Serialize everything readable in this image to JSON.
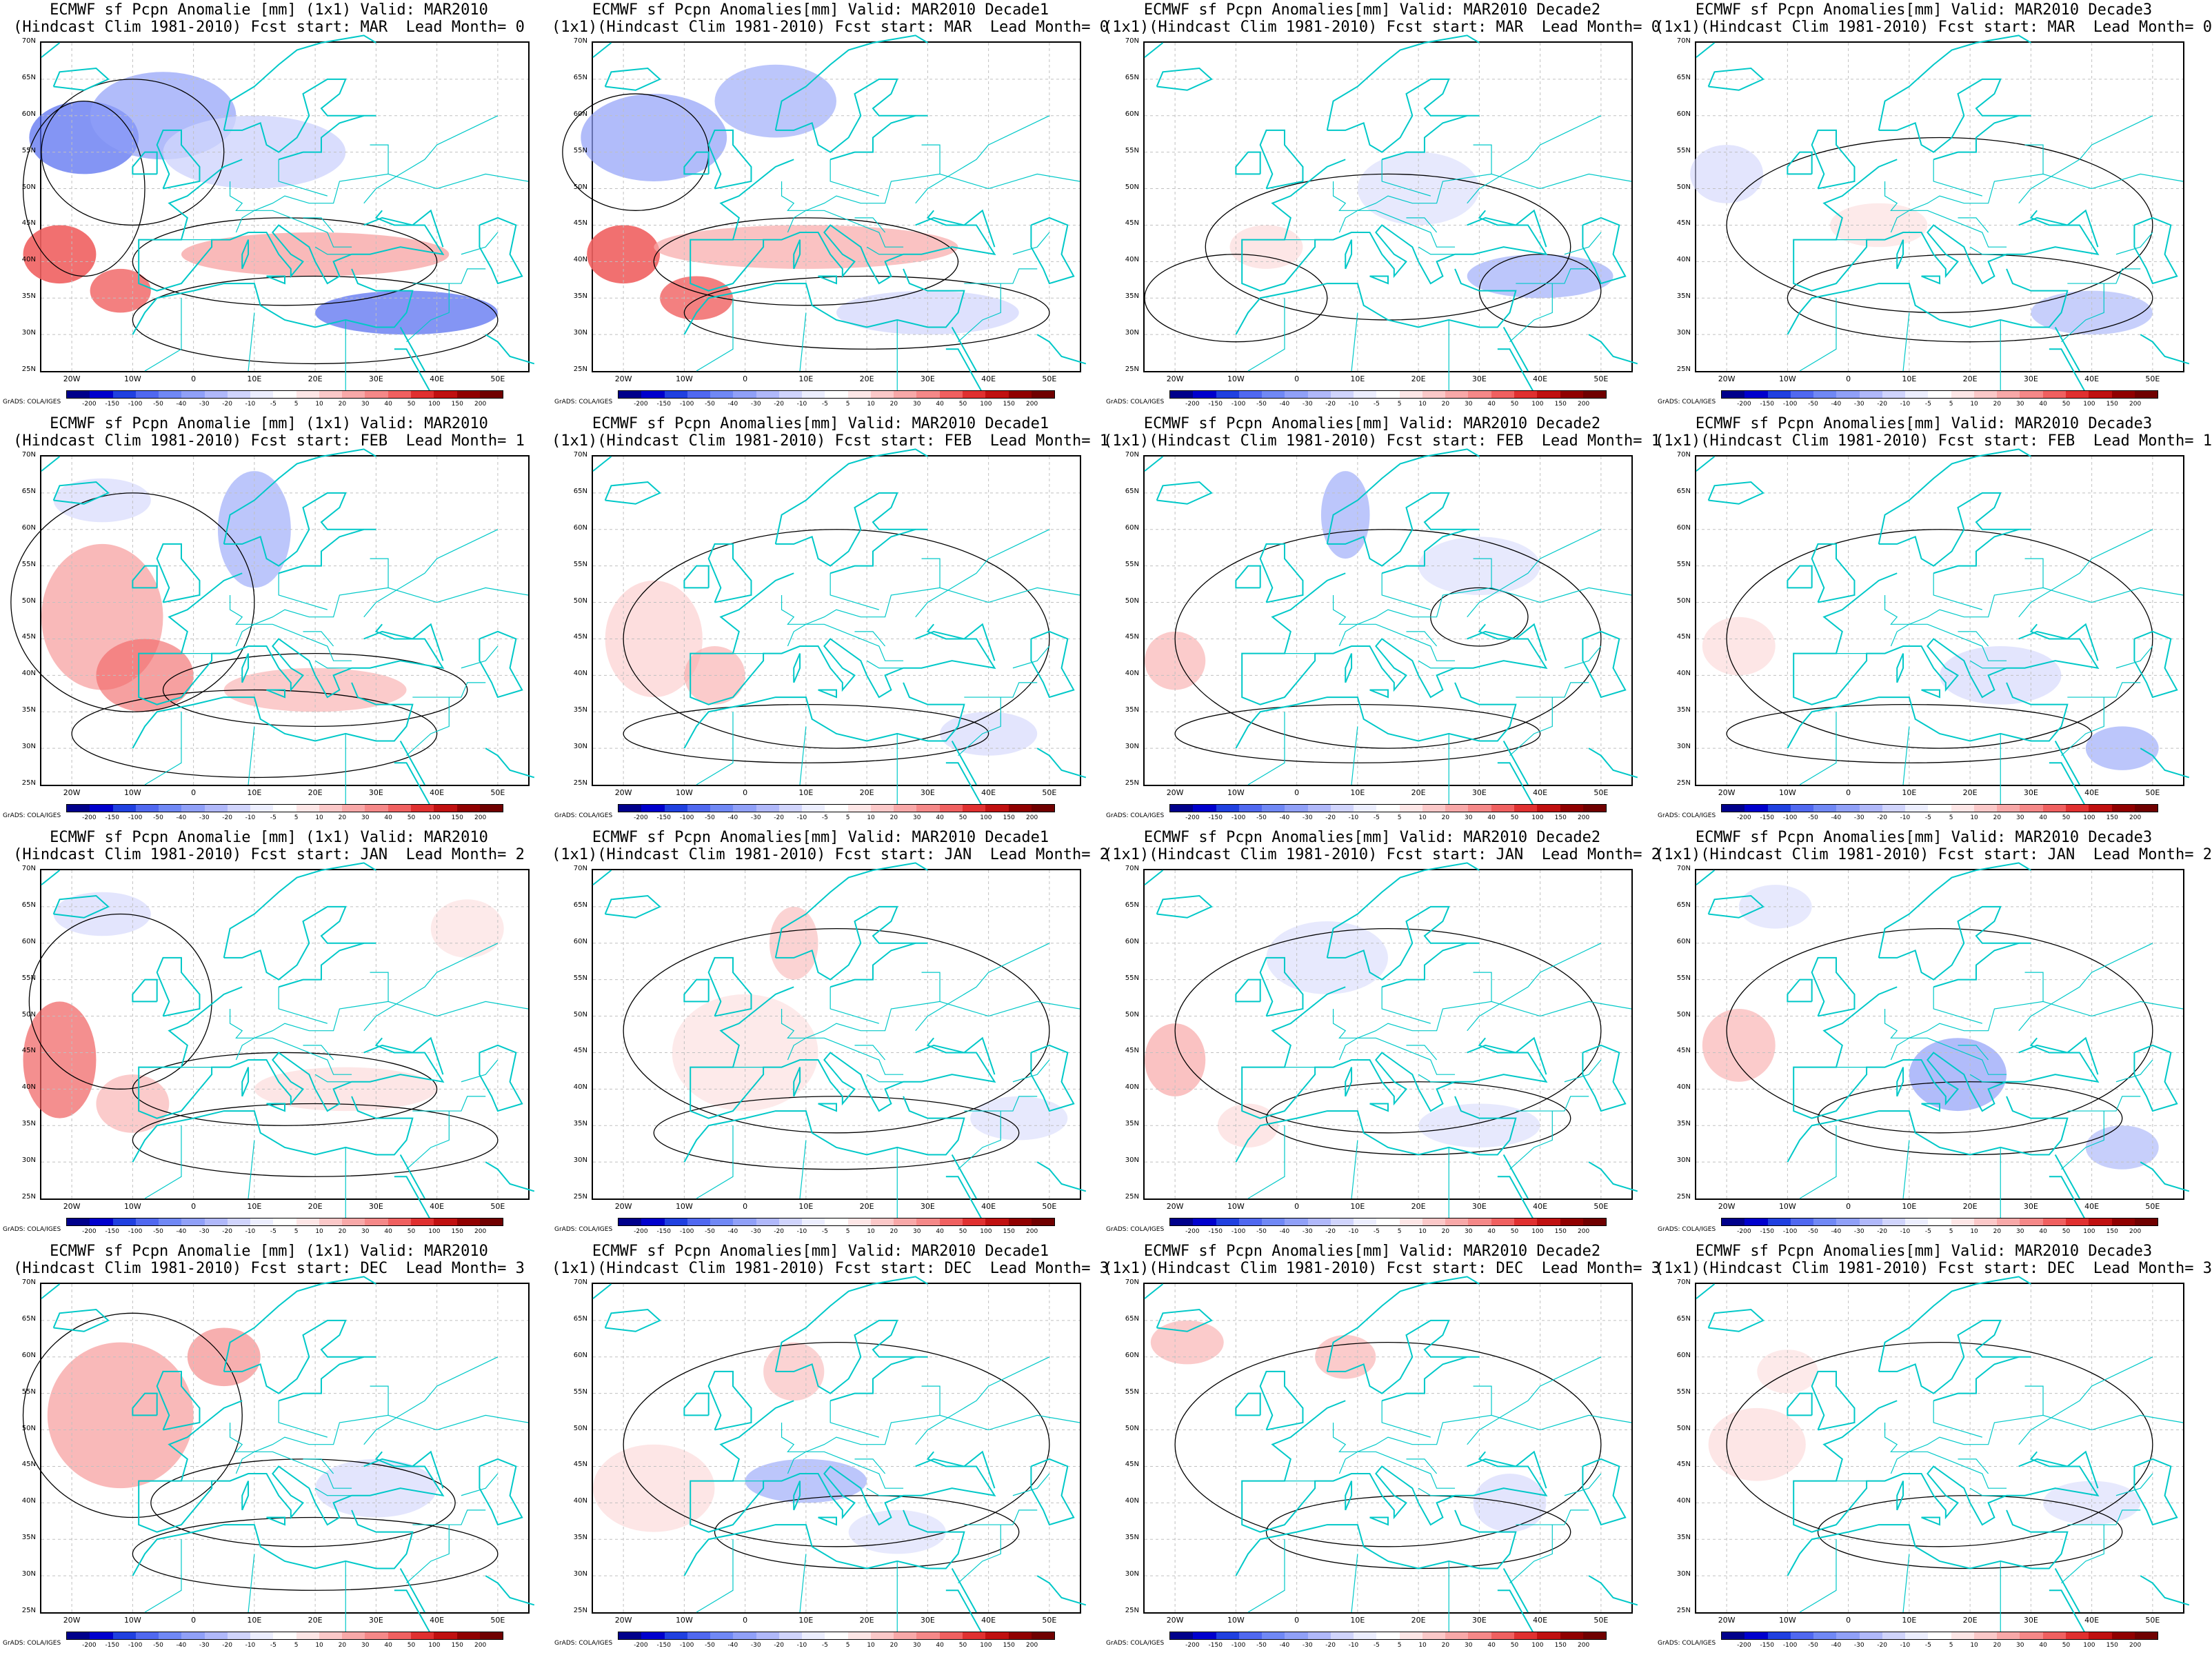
{
  "panels": [
    {
      "title": "ECMWF sf Pcpn Anomalie [mm] (1x1) Valid: MAR2010\n(Hindcast Clim 1981-2010) Fcst start: MAR  Lead Month= 0",
      "pattern": 0
    },
    {
      "title": "ECMWF sf Pcpn Anomalies[mm] Valid: MAR2010 Decade1\n(1x1)(Hindcast Clim 1981-2010) Fcst start: MAR  Lead Month= 0",
      "pattern": 1
    },
    {
      "title": "ECMWF sf Pcpn Anomalies[mm] Valid: MAR2010 Decade2\n(1x1)(Hindcast Clim 1981-2010) Fcst start: MAR  Lead Month= 0",
      "pattern": 2
    },
    {
      "title": "ECMWF sf Pcpn Anomalies[mm] Valid: MAR2010 Decade3\n(1x1)(Hindcast Clim 1981-2010) Fcst start: MAR  Lead Month= 0",
      "pattern": 3
    },
    {
      "title": "ECMWF sf Pcpn Anomalie [mm] (1x1) Valid: MAR2010\n(Hindcast Clim 1981-2010) Fcst start: FEB  Lead Month= 1",
      "pattern": 4
    },
    {
      "title": "ECMWF sf Pcpn Anomalies[mm] Valid: MAR2010 Decade1\n(1x1)(Hindcast Clim 1981-2010) Fcst start: FEB  Lead Month= 1",
      "pattern": 5
    },
    {
      "title": "ECMWF sf Pcpn Anomalies[mm] Valid: MAR2010 Decade2\n(1x1)(Hindcast Clim 1981-2010) Fcst start: FEB  Lead Month= 1",
      "pattern": 6
    },
    {
      "title": "ECMWF sf Pcpn Anomalies[mm] Valid: MAR2010 Decade3\n(1x1)(Hindcast Clim 1981-2010) Fcst start: FEB  Lead Month= 1",
      "pattern": 7
    },
    {
      "title": "ECMWF sf Pcpn Anomalie [mm] (1x1) Valid: MAR2010\n(Hindcast Clim 1981-2010) Fcst start: JAN  Lead Month= 2",
      "pattern": 8
    },
    {
      "title": "ECMWF sf Pcpn Anomalies[mm] Valid: MAR2010 Decade1\n(1x1)(Hindcast Clim 1981-2010) Fcst start: JAN  Lead Month= 2",
      "pattern": 9
    },
    {
      "title": "ECMWF sf Pcpn Anomalies[mm] Valid: MAR2010 Decade2\n(1x1)(Hindcast Clim 1981-2010) Fcst start: JAN  Lead Month= 2",
      "pattern": 10
    },
    {
      "title": "ECMWF sf Pcpn Anomalies[mm] Valid: MAR2010 Decade3\n(1x1)(Hindcast Clim 1981-2010) Fcst start: JAN  Lead Month= 2",
      "pattern": 11
    },
    {
      "title": "ECMWF sf Pcpn Anomalie [mm] (1x1) Valid: MAR2010\n(Hindcast Clim 1981-2010) Fcst start: DEC  Lead Month= 3",
      "pattern": 12
    },
    {
      "title": "ECMWF sf Pcpn Anomalies[mm] Valid: MAR2010 Decade1\n(1x1)(Hindcast Clim 1981-2010) Fcst start: DEC  Lead Month= 3",
      "pattern": 13
    },
    {
      "title": "ECMWF sf Pcpn Anomalies[mm] Valid: MAR2010 Decade2\n(1x1)(Hindcast Clim 1981-2010) Fcst start: DEC  Lead Month= 3",
      "pattern": 14
    },
    {
      "title": "ECMWF sf Pcpn Anomalies[mm] Valid: MAR2010 Decade3\n(1x1)(Hindcast Clim 1981-2010) Fcst start: DEC  Lead Month= 3",
      "pattern": 15
    }
  ],
  "lat_labels": [
    "70N",
    "65N",
    "60N",
    "55N",
    "50N",
    "45N",
    "40N",
    "35N",
    "30N",
    "25N"
  ],
  "lon_labels": [
    "20W",
    "10W",
    "0",
    "10E",
    "20E",
    "30E",
    "40E",
    "50E"
  ],
  "colorbar": {
    "labels": [
      "-200",
      "-150",
      "-100",
      "-50",
      "-40",
      "-30",
      "-20",
      "-10",
      "-5",
      "5",
      "10",
      "20",
      "30",
      "40",
      "50",
      "100",
      "150",
      "200"
    ],
    "colors": [
      "#00008b",
      "#0000cd",
      "#2040e0",
      "#5068f0",
      "#7088f5",
      "#90a0f8",
      "#b0b8fa",
      "#d0d4fc",
      "#eceefe",
      "#ffffff",
      "#fde6e6",
      "#fbc8c8",
      "#f8a8a8",
      "#f58888",
      "#f06060",
      "#e03030",
      "#c01010",
      "#900000",
      "#700000"
    ]
  },
  "credit": "GrADS: COLA/IGES",
  "colors": {
    "coast": "#00c8c8",
    "contour": "#000000",
    "grid": "#c0c0c0"
  }
}
